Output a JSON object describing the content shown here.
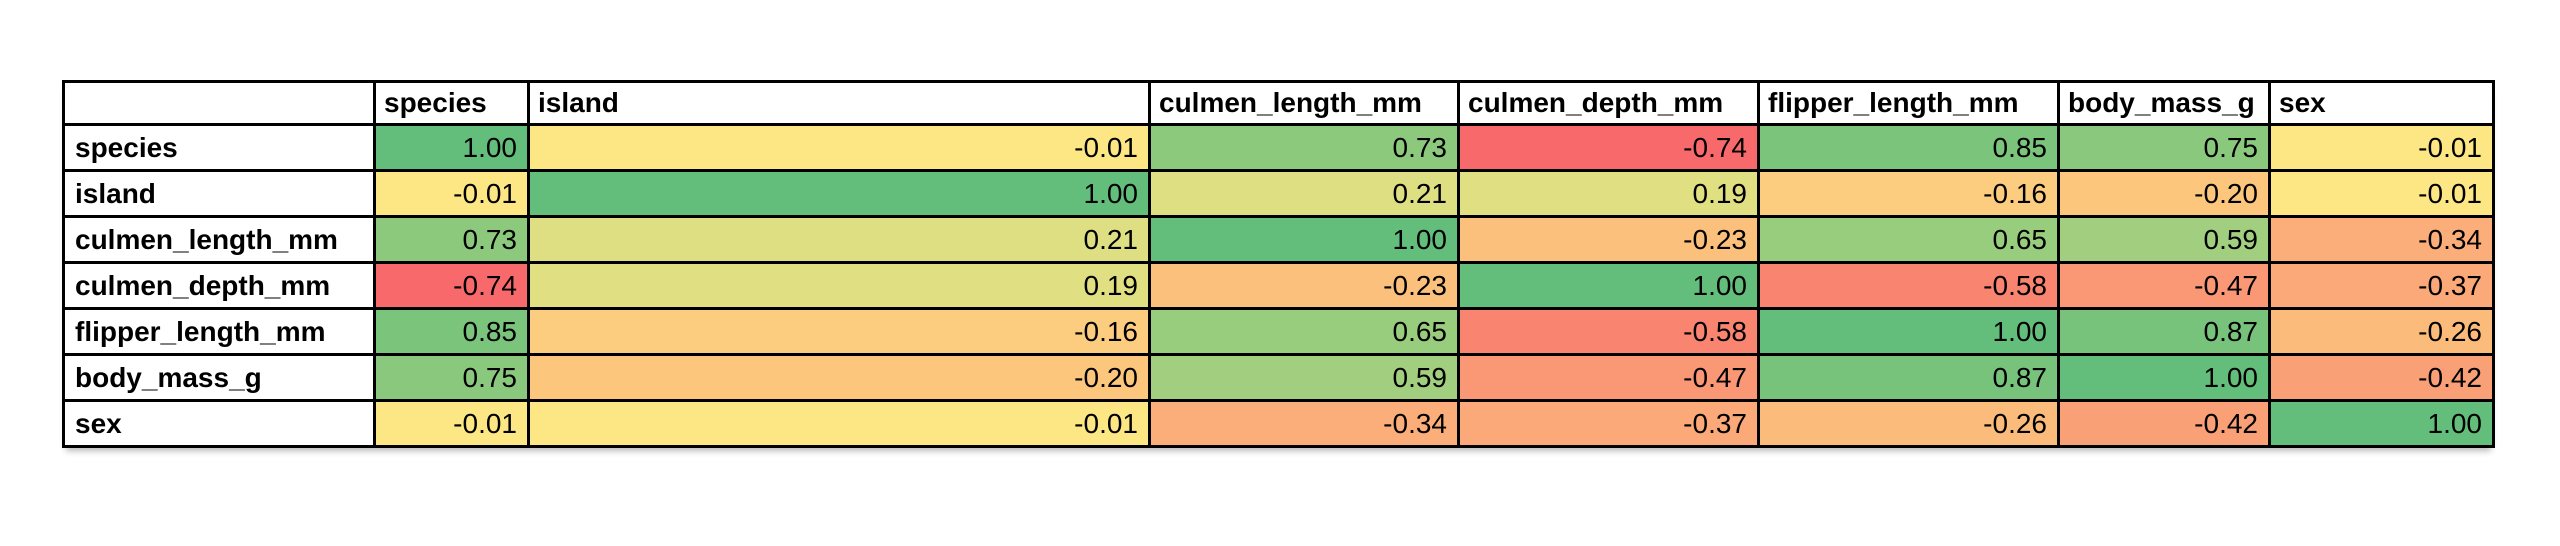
{
  "page": {
    "background_color": "#ffffff",
    "grid_border_color": "#000000"
  },
  "chart_data": {
    "type": "heatmap",
    "subtype": "correlation-matrix-table",
    "corner_label": "",
    "columns": [
      "species",
      "island",
      "culmen_length_mm",
      "culmen_depth_mm",
      "flipper_length_mm",
      "body_mass_g",
      "sex"
    ],
    "rows": [
      "species",
      "island",
      "culmen_length_mm",
      "culmen_depth_mm",
      "flipper_length_mm",
      "body_mass_g",
      "sex"
    ],
    "values": [
      [
        1.0,
        -0.01,
        0.73,
        -0.74,
        0.85,
        0.75,
        -0.01
      ],
      [
        -0.01,
        1.0,
        0.21,
        0.19,
        -0.16,
        -0.2,
        -0.01
      ],
      [
        0.73,
        0.21,
        1.0,
        -0.23,
        0.65,
        0.59,
        -0.34
      ],
      [
        -0.74,
        0.19,
        -0.23,
        1.0,
        -0.58,
        -0.47,
        -0.37
      ],
      [
        0.85,
        -0.16,
        0.65,
        -0.58,
        1.0,
        0.87,
        -0.26
      ],
      [
        0.75,
        -0.2,
        0.59,
        -0.47,
        0.87,
        1.0,
        -0.42
      ],
      [
        -0.01,
        -0.01,
        -0.34,
        -0.37,
        -0.26,
        -0.42,
        1.0
      ]
    ],
    "value_decimals": 2,
    "value_range": [
      -0.74,
      1.0
    ],
    "color_scale": {
      "min_value": -0.74,
      "min_color": "#F8696B",
      "mid_value": 0,
      "mid_color": "#FDE884",
      "max_value": 1.0,
      "max_color": "#63BE7B"
    },
    "grid": true,
    "legend": false,
    "title": ""
  }
}
